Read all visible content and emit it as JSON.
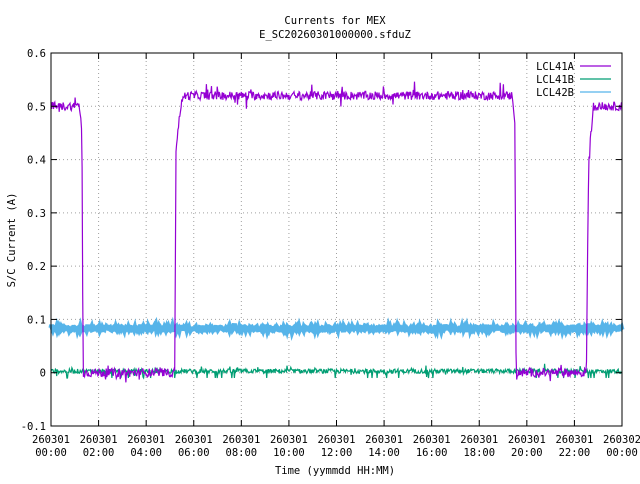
{
  "chart_data": {
    "type": "line",
    "title": "Currents for MEX",
    "subtitle": "E_SC20260301000000.sfduZ",
    "xlabel": "Time (yymmdd HH:MM)",
    "ylabel": "S/C Current (A)",
    "xlim_hours": [
      0,
      24
    ],
    "ylim": [
      -0.1,
      0.6
    ],
    "yticks": [
      -0.1,
      0,
      0.1,
      0.2,
      0.3,
      0.4,
      0.5,
      0.6
    ],
    "ytick_labels": [
      "-0.1",
      "0",
      "0.1",
      "0.2",
      "0.3",
      "0.4",
      "0.5",
      "0.6"
    ],
    "xticks": [
      {
        "date": "260301",
        "time": "00:00"
      },
      {
        "date": "260301",
        "time": "02:00"
      },
      {
        "date": "260301",
        "time": "04:00"
      },
      {
        "date": "260301",
        "time": "06:00"
      },
      {
        "date": "260301",
        "time": "08:00"
      },
      {
        "date": "260301",
        "time": "10:00"
      },
      {
        "date": "260301",
        "time": "12:00"
      },
      {
        "date": "260301",
        "time": "14:00"
      },
      {
        "date": "260301",
        "time": "16:00"
      },
      {
        "date": "260301",
        "time": "18:00"
      },
      {
        "date": "260301",
        "time": "20:00"
      },
      {
        "date": "260301",
        "time": "22:00"
      },
      {
        "date": "260302",
        "time": "00:00"
      }
    ],
    "grid": true,
    "legend_position": "top-right",
    "series": [
      {
        "name": "LCL41A",
        "color": "#9400d3",
        "noise": 0.008,
        "points": [
          [
            0.0,
            0.5
          ],
          [
            1.2,
            0.5
          ],
          [
            1.3,
            0.45
          ],
          [
            1.35,
            0.0
          ],
          [
            5.2,
            0.0
          ],
          [
            5.25,
            0.42
          ],
          [
            5.45,
            0.5
          ],
          [
            5.6,
            0.52
          ],
          [
            19.4,
            0.52
          ],
          [
            19.5,
            0.47
          ],
          [
            19.55,
            0.0
          ],
          [
            22.5,
            0.0
          ],
          [
            22.6,
            0.4
          ],
          [
            22.8,
            0.5
          ],
          [
            24.0,
            0.5
          ]
        ]
      },
      {
        "name": "LCL41B",
        "color": "#009e73",
        "noise": 0.004,
        "points": [
          [
            0.0,
            0.003
          ],
          [
            24.0,
            0.003
          ]
        ]
      },
      {
        "name": "LCL42B",
        "color": "#56b4e9",
        "noise": 0.003,
        "points": [
          [
            0.0,
            0.083
          ],
          [
            24.0,
            0.083
          ]
        ]
      }
    ]
  }
}
